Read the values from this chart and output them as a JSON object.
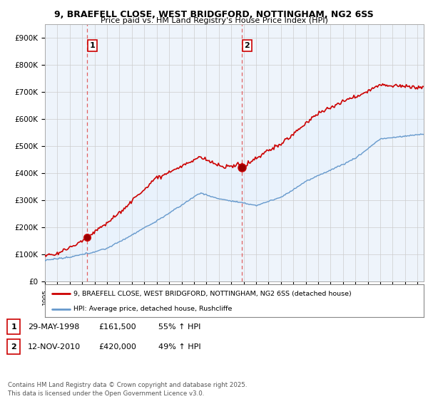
{
  "title_line1": "9, BRAEFELL CLOSE, WEST BRIDGFORD, NOTTINGHAM, NG2 6SS",
  "title_line2": "Price paid vs. HM Land Registry's House Price Index (HPI)",
  "ylim": [
    0,
    950000
  ],
  "yticks": [
    0,
    100000,
    200000,
    300000,
    400000,
    500000,
    600000,
    700000,
    800000,
    900000
  ],
  "ytick_labels": [
    "£0",
    "£100K",
    "£200K",
    "£300K",
    "£400K",
    "£500K",
    "£600K",
    "£700K",
    "£800K",
    "£900K"
  ],
  "xlim_start": 1995.0,
  "xlim_end": 2025.5,
  "sale1_date": 1998.41,
  "sale1_price": 161500,
  "sale1_label": "1",
  "sale2_date": 2010.87,
  "sale2_price": 420000,
  "sale2_label": "2",
  "legend_line1": "9, BRAEFELL CLOSE, WEST BRIDGFORD, NOTTINGHAM, NG2 6SS (detached house)",
  "legend_line2": "HPI: Average price, detached house, Rushcliffe",
  "table_row1": [
    "1",
    "29-MAY-1998",
    "£161,500",
    "55% ↑ HPI"
  ],
  "table_row2": [
    "2",
    "12-NOV-2010",
    "£420,000",
    "49% ↑ HPI"
  ],
  "footer": "Contains HM Land Registry data © Crown copyright and database right 2025.\nThis data is licensed under the Open Government Licence v3.0.",
  "red_color": "#cc0000",
  "blue_color": "#6699cc",
  "fill_color": "#ddeeff",
  "vline_color": "#e06060",
  "background_color": "#ffffff",
  "grid_color": "#cccccc"
}
